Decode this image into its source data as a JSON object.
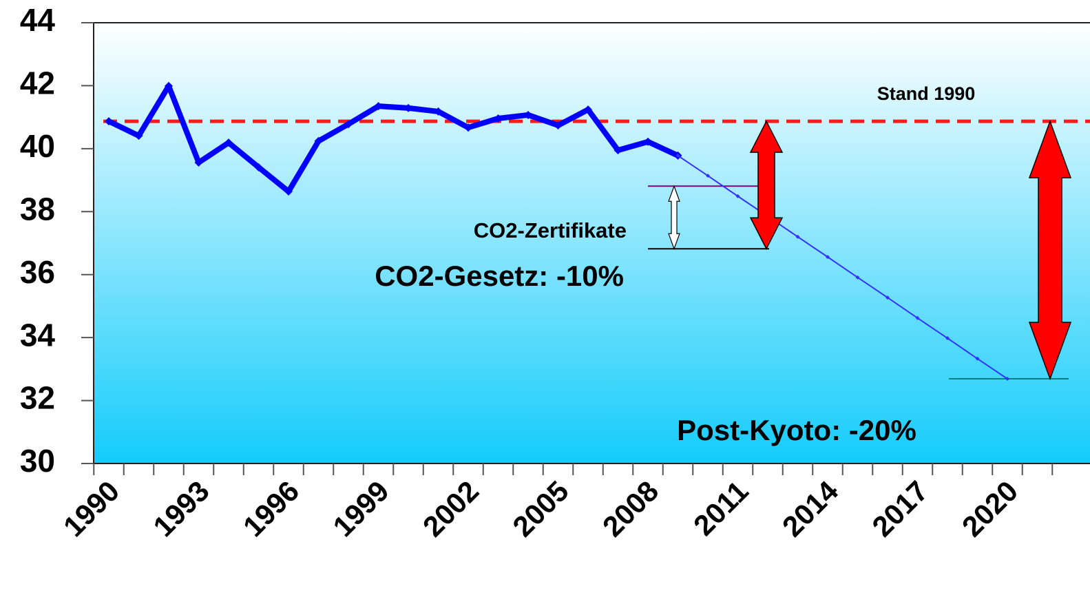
{
  "chart_data": {
    "type": "line",
    "categories": [
      "1990",
      null,
      null,
      "1993",
      null,
      null,
      "1996",
      null,
      null,
      "1999",
      null,
      null,
      "2002",
      null,
      null,
      "2005",
      null,
      null,
      "2008",
      null,
      null,
      "2011",
      null,
      null,
      "2014",
      null,
      null,
      "2017",
      null,
      null,
      "2020",
      null,
      null
    ],
    "series": [
      {
        "color": "#0000ff",
        "values": [
          40.87,
          40.41,
          41.99,
          39.56,
          40.19,
          39.41,
          38.64,
          40.24,
          40.78,
          41.35,
          41.29,
          41.18,
          40.67,
          40.96,
          41.07,
          40.74,
          41.24,
          39.95,
          40.22,
          39.78,
          null,
          null,
          null,
          null,
          null,
          null,
          null,
          null,
          null,
          null,
          null,
          null,
          null
        ]
      },
      {
        "color": "#3333ff",
        "values": [
          null,
          null,
          null,
          null,
          null,
          null,
          null,
          null,
          null,
          null,
          null,
          null,
          null,
          null,
          null,
          null,
          null,
          null,
          null,
          39.78,
          39.14,
          38.49,
          37.85,
          37.2,
          36.56,
          35.91,
          35.27,
          34.62,
          33.98,
          33.33,
          32.69,
          null,
          null
        ]
      }
    ],
    "ylim": [
      30,
      44
    ],
    "yticks": [
      30,
      32,
      34,
      36,
      38,
      40,
      42,
      44
    ],
    "reference_lines": [
      40.87,
      38.81,
      36.82,
      32.69
    ],
    "reference_label": "Stand 1990",
    "annotations": [
      "CO2-Zertifikate",
      "CO2-Gesetz: -10%",
      "Post-Kyoto: -20%"
    ]
  }
}
